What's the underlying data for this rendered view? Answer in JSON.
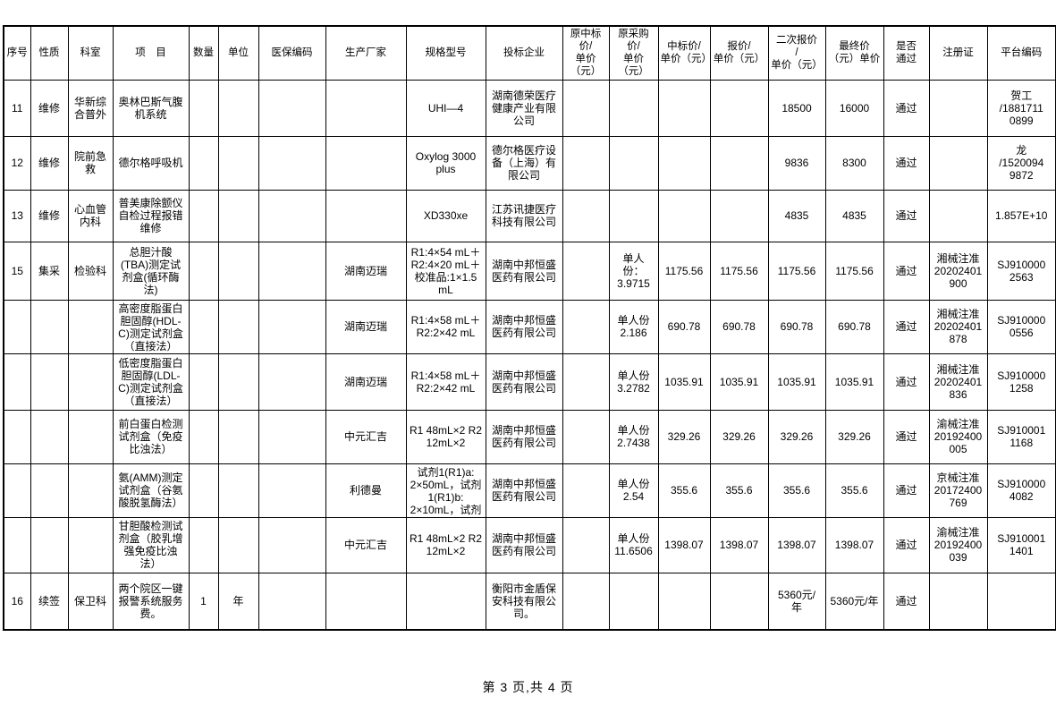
{
  "table": {
    "headers": [
      "序号",
      "性质",
      "科室",
      "项　目",
      "数量",
      "单位",
      "医保编码",
      "生产厂家",
      "规格型号",
      "投标企业",
      "原中标\n价/\n单价\n（元）",
      "原采购\n价/\n单价\n（元）",
      "中标价/\n单价（元）",
      "报价/\n单价（元）",
      "二次报价\n/\n单价（元）",
      "最终价\n（元）单价",
      "是否\n通过",
      "注册证",
      "平台编码"
    ],
    "rows": [
      [
        "11",
        "维修",
        "华新综\n合普外",
        "奥林巴斯气腹\n机系统",
        "",
        "",
        "",
        "",
        "UHI—4",
        "湖南德荣医疗\n健康产业有限\n公司",
        "",
        "",
        "",
        "",
        "18500",
        "16000",
        "通过",
        "",
        "贺工\n/1881711\n0899"
      ],
      [
        "12",
        "维修",
        "院前急\n救",
        "德尔格呼吸机",
        "",
        "",
        "",
        "",
        "Oxylog 3000\nplus",
        "德尔格医疗设\n备（上海）有\n限公司",
        "",
        "",
        "",
        "",
        "9836",
        "8300",
        "通过",
        "",
        "龙\n/1520094\n9872"
      ],
      [
        "13",
        "维修",
        "心血管\n内科",
        "普美康除颤仪\n自检过程报错\n维修",
        "",
        "",
        "",
        "",
        "XD330xe",
        "江苏讯捷医疗\n科技有限公司",
        "",
        "",
        "",
        "",
        "4835",
        "4835",
        "通过",
        "",
        "1.857E+10"
      ],
      [
        "15",
        "集采",
        "检验科",
        "总胆汁酸\n(TBA)测定试\n剂盒(循环酶\n法)",
        "",
        "",
        "",
        "湖南迈瑞",
        "R1:4×54 mL＋\nR2:4×20 mL＋\n校准品:1×1.5\nmL",
        "湖南中邦恒盛\n医药有限公司",
        "",
        "单人\n份：\n3.9715",
        "1175.56",
        "1175.56",
        "1175.56",
        "1175.56",
        "通过",
        "湘械注准\n20202401\n900",
        "SJ910000\n2563"
      ],
      [
        "",
        "",
        "",
        "高密度脂蛋白\n胆固醇(HDL-\nC)测定试剂盒\n（直接法）",
        "",
        "",
        "",
        "湖南迈瑞",
        "R1:4×58 mL＋\nR2:2×42 mL",
        "湖南中邦恒盛\n医药有限公司",
        "",
        "单人份\n2.186",
        "690.78",
        "690.78",
        "690.78",
        "690.78",
        "通过",
        "湘械注准\n20202401\n878",
        "SJ910000\n0556"
      ],
      [
        "",
        "",
        "",
        "低密度脂蛋白\n胆固醇(LDL-\nC)测定试剂盒\n（直接法）",
        "",
        "",
        "",
        "湖南迈瑞",
        "R1:4×58 mL＋\nR2:2×42 mL",
        "湖南中邦恒盛\n医药有限公司",
        "",
        "单人份\n3.2782",
        "1035.91",
        "1035.91",
        "1035.91",
        "1035.91",
        "通过",
        "湘械注准\n20202401\n836",
        "SJ910000\n1258"
      ],
      [
        "",
        "",
        "",
        "前白蛋白检测\n试剂盒（免疫\n比浊法）",
        "",
        "",
        "",
        "中元汇吉",
        "R1 48mL×2 R2\n12mL×2",
        "湖南中邦恒盛\n医药有限公司",
        "",
        "单人份\n2.7438",
        "329.26",
        "329.26",
        "329.26",
        "329.26",
        "通过",
        "渝械注准\n20192400\n005",
        "SJ910001\n1168"
      ],
      [
        "",
        "",
        "",
        "氨(AMM)测定\n试剂盒（谷氨\n酸脱氢酶法）",
        "",
        "",
        "",
        "利德曼",
        "试剂1(R1)a:\n2×50mL，试剂\n1(R1)b:\n2×10mL，试剂",
        "湖南中邦恒盛\n医药有限公司",
        "",
        "单人份\n2.54",
        "355.6",
        "355.6",
        "355.6",
        "355.6",
        "通过",
        "京械注准\n20172400\n769",
        "SJ910000\n4082"
      ],
      [
        "",
        "",
        "",
        "甘胆酸检测试\n剂盒（胶乳增\n强免疫比浊\n法）",
        "",
        "",
        "",
        "中元汇吉",
        "R1 48mL×2 R2\n12mL×2",
        "湖南中邦恒盛\n医药有限公司",
        "",
        "单人份\n11.6506",
        "1398.07",
        "1398.07",
        "1398.07",
        "1398.07",
        "通过",
        "渝械注准\n20192400\n039",
        "SJ910001\n1401"
      ],
      [
        "16",
        "续签",
        "保卫科",
        "两个院区一键\n报警系统服务\n费。",
        "1",
        "年",
        "",
        "",
        "",
        "衡阳市金盾保\n安科技有限公\n司。",
        "",
        "",
        "",
        "",
        "5360元/\n年",
        "5360元/年",
        "通过",
        "",
        ""
      ]
    ]
  },
  "footer": {
    "page_text": "第 3 页,共 4 页"
  }
}
